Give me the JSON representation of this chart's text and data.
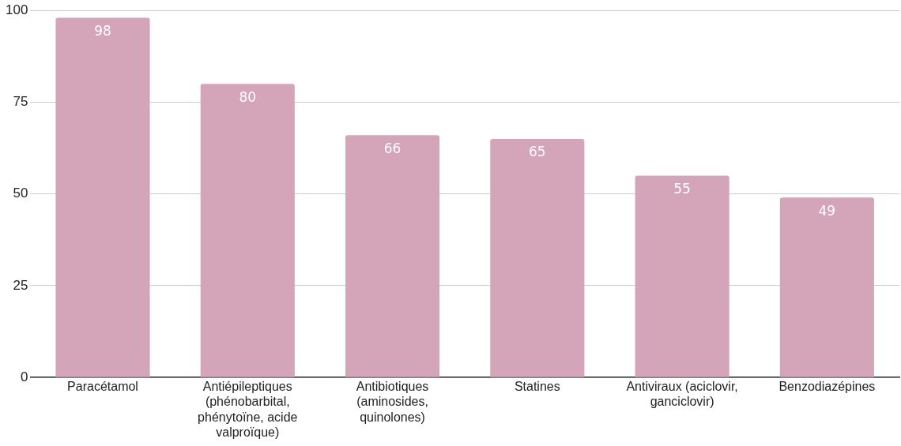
{
  "chart_data": {
    "type": "bar",
    "categories": [
      "Paracétamol",
      "Antiépileptiques (phénobarbital, phénytoïne, acide valproïque)",
      "Antibiotiques (aminosides, quinolones)",
      "Statines",
      "Antiviraux (aciclovir, ganciclovir)",
      "Benzodiazépines"
    ],
    "values": [
      98,
      80,
      66,
      65,
      55,
      49
    ],
    "color": "#d4a5b8",
    "ylim": [
      0,
      100
    ],
    "yticks": [
      0,
      25,
      50,
      75,
      100
    ],
    "grid": "y",
    "data_labels": true,
    "legend": false
  }
}
